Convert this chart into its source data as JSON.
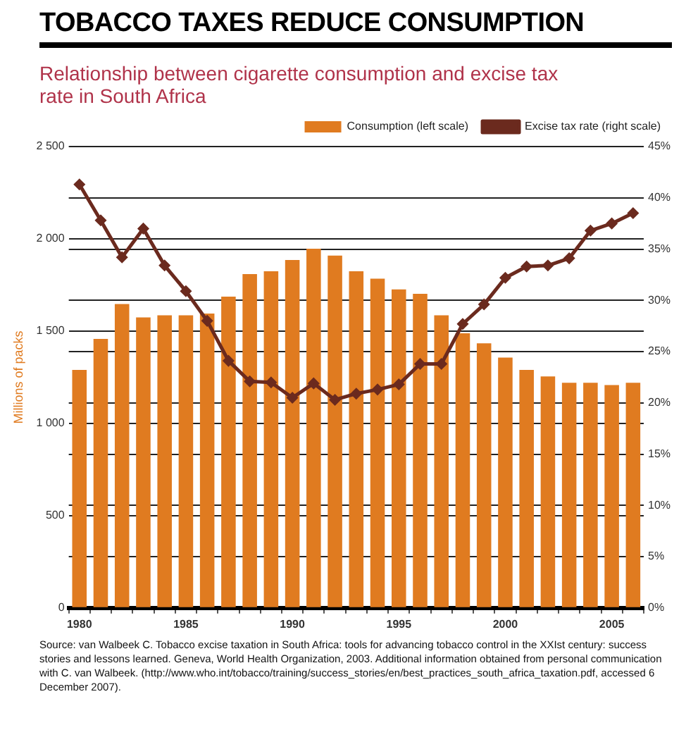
{
  "chart_data": {
    "type": "bar",
    "title": "TOBACCO TAXES REDUCE CONSUMPTION",
    "subtitle": "Relationship between cigarette consumption and excise tax rate in South Africa",
    "ylabel": "Millions of packs",
    "categories": [
      "1980",
      null,
      null,
      null,
      null,
      "1985",
      null,
      null,
      null,
      null,
      "1990",
      null,
      null,
      null,
      null,
      "1995",
      null,
      null,
      null,
      null,
      "2000",
      null,
      null,
      null,
      null,
      "2005",
      null
    ],
    "series": [
      {
        "name": "Consumption (left scale)",
        "color": "#e07b20",
        "values": [
          1290,
          1458,
          1647,
          1574,
          1586,
          1586,
          1595,
          1687,
          1809,
          1824,
          1885,
          1946,
          1909,
          1824,
          1784,
          1726,
          1702,
          1586,
          1488,
          1434,
          1357,
          1290,
          1254,
          1220,
          1220,
          1208,
          1220
        ]
      },
      {
        "name": "Excise tax rate (right scale)",
        "type": "line",
        "axis": "y2",
        "color": "#6b2a1e",
        "values": [
          41.3,
          37.8,
          34.2,
          37,
          33.4,
          30.9,
          28,
          24.1,
          22.1,
          22,
          20.5,
          21.9,
          20.3,
          20.9,
          21.3,
          21.8,
          23.8,
          23.8,
          27.7,
          29.6,
          32.2,
          33.3,
          33.4,
          34.1,
          36.8,
          37.5,
          38.5
        ]
      }
    ],
    "ylim": [
      0,
      2500
    ],
    "yticks": [
      {
        "value": 0,
        "label": "0"
      },
      {
        "value": 500,
        "label": "500"
      },
      {
        "value": 1000,
        "label": "1 000"
      },
      {
        "value": 1500,
        "label": "1 500"
      },
      {
        "value": 2000,
        "label": "2 000"
      },
      {
        "value": 2500,
        "label": "2 500"
      }
    ],
    "y2lim": [
      0,
      45
    ],
    "y2ticks": [
      {
        "value": 0,
        "label": "0%"
      },
      {
        "value": 5,
        "label": "5%"
      },
      {
        "value": 10,
        "label": "10%"
      },
      {
        "value": 15,
        "label": "15%"
      },
      {
        "value": 20,
        "label": "20%"
      },
      {
        "value": 25,
        "label": "25%"
      },
      {
        "value": 30,
        "label": "30%"
      },
      {
        "value": 35,
        "label": "35%"
      },
      {
        "value": 40,
        "label": "40%"
      },
      {
        "value": 45,
        "label": "45%"
      }
    ],
    "grid": "y",
    "legend": "top right",
    "marker": "diamond",
    "annotations": [
      "Source: van Walbeek C. Tobacco excise taxation in South Africa: tools for advancing tobacco control in the XXIst century: success stories and lessons learned. Geneva, World Health Organization, 2003. Additional information obtained from personal communication with C. van Walbeek. (http://www.who.int/tobacco/training/success_stories/en/best_practices_south_africa_taxation.pdf, accessed 6 December 2007)."
    ]
  }
}
